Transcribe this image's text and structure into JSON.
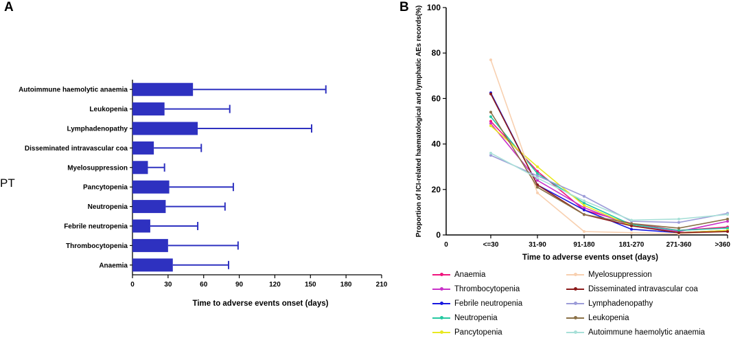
{
  "panels": {
    "a": "A",
    "b": "B"
  },
  "chart_data": [
    {
      "type": "bar",
      "orientation": "horizontal",
      "side_label": "PT",
      "xlabel": "Time to adverse events onset (days)",
      "xlim": [
        0,
        210
      ],
      "xticks": [
        0,
        30,
        60,
        90,
        120,
        150,
        180,
        210
      ],
      "categories": [
        "Autoimmune haemolytic anaemia",
        "Leukopenia",
        "Lymphadenopathy",
        "Disseminated intravascular coa",
        "Myelosuppression",
        "Pancytopenia",
        "Neutropenia",
        "Febrile neutropenia",
        "Thrombocytopenia",
        "Anaemia"
      ],
      "values": [
        51,
        27,
        55,
        18,
        13,
        31,
        28,
        15,
        30,
        34
      ],
      "error_upper": [
        163,
        82,
        151,
        58,
        27,
        85,
        78,
        55,
        89,
        81
      ],
      "bar_color": "#2e31c0"
    },
    {
      "type": "line",
      "xlabel": "Time to adverse events onset (days)",
      "ylabel": "Proportion of ICI-related haematological and lymphatic AEs records(%)",
      "ylim": [
        0,
        100
      ],
      "yticks": [
        0,
        20,
        40,
        60,
        80,
        100
      ],
      "x_origin_label": "0",
      "categories": [
        "<=30",
        "31-90",
        "91-180",
        "181-270",
        "271-360",
        ">360"
      ],
      "series": [
        {
          "name": "Anaemia",
          "color": "#f0147d",
          "values": [
            50,
            28,
            11,
            5,
            2,
            3.5
          ]
        },
        {
          "name": "Thrombocytopenia",
          "color": "#c830c8",
          "values": [
            49,
            24,
            12,
            4,
            1.5,
            6
          ]
        },
        {
          "name": "Febrile neutropenia",
          "color": "#1818e0",
          "values": [
            62.5,
            22,
            11,
            2.5,
            1,
            2
          ]
        },
        {
          "name": "Neutropenia",
          "color": "#24c8a0",
          "values": [
            52,
            27,
            14,
            4.5,
            2,
            3
          ]
        },
        {
          "name": "Pancytopenia",
          "color": "#e8e820",
          "values": [
            48,
            30,
            13,
            4,
            1,
            2
          ]
        },
        {
          "name": "Myelosuppression",
          "color": "#f8d0b0",
          "values": [
            77,
            18.5,
            1.5,
            1,
            0.5,
            1.5
          ]
        },
        {
          "name": "Disseminated intravascular coa",
          "color": "#8b1a1a",
          "values": [
            62,
            22,
            9,
            4,
            1,
            1.5
          ]
        },
        {
          "name": "Lymphadenopathy",
          "color": "#9c9cd8",
          "values": [
            35,
            26,
            17,
            6,
            5.5,
            9.5
          ]
        },
        {
          "name": "Leukopenia",
          "color": "#8a7046",
          "values": [
            54,
            21,
            9,
            5,
            3,
            7
          ]
        },
        {
          "name": "Autoimmune haemolytic anaemia",
          "color": "#a8e0d8",
          "values": [
            36,
            25,
            15,
            6.5,
            7,
            9
          ]
        }
      ]
    }
  ]
}
